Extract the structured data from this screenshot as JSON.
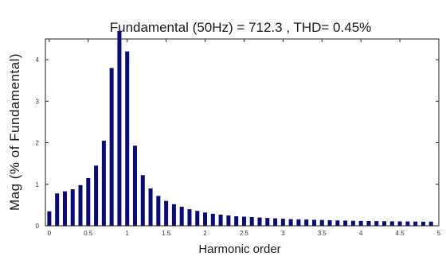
{
  "chart_data": {
    "type": "bar",
    "title": "Fundamental (50Hz) = 712.3 , THD= 0.45%",
    "xlabel": "Harmonic order",
    "ylabel": "Mag (% of Fundamental)",
    "xlim": [
      -0.05,
      5.0
    ],
    "ylim": [
      0,
      4.5
    ],
    "xticks": [
      0,
      0.5,
      1,
      1.5,
      2,
      2.5,
      3,
      3.5,
      4,
      4.5,
      5
    ],
    "xtick_labels": [
      "0",
      "0.5",
      "1",
      "1.5",
      "2",
      "2.5",
      "3",
      "3.5",
      "4",
      "4.5",
      "5"
    ],
    "yticks": [
      0,
      1,
      2,
      3,
      4
    ],
    "ytick_labels": [
      "0",
      "1",
      "2",
      "3",
      "4"
    ],
    "grid": false,
    "colors": {
      "bar": "#0a0a7a",
      "axis": "#222222"
    },
    "x": [
      0,
      0.1,
      0.2,
      0.3,
      0.4,
      0.5,
      0.6,
      0.7,
      0.8,
      0.9,
      1.0,
      1.1,
      1.2,
      1.3,
      1.4,
      1.5,
      1.6,
      1.7,
      1.8,
      1.9,
      2.0,
      2.1,
      2.2,
      2.3,
      2.4,
      2.5,
      2.6,
      2.7,
      2.8,
      2.9,
      3.0,
      3.1,
      3.2,
      3.3,
      3.4,
      3.5,
      3.6,
      3.7,
      3.8,
      3.9,
      4.0,
      4.1,
      4.2,
      4.3,
      4.4,
      4.5,
      4.6,
      4.7,
      4.8,
      4.9
    ],
    "values": [
      0.35,
      0.78,
      0.83,
      0.88,
      0.98,
      1.15,
      1.45,
      2.05,
      3.8,
      5.0,
      4.2,
      1.93,
      1.22,
      0.9,
      0.72,
      0.6,
      0.52,
      0.46,
      0.4,
      0.36,
      0.32,
      0.29,
      0.27,
      0.25,
      0.23,
      0.22,
      0.21,
      0.2,
      0.19,
      0.18,
      0.17,
      0.16,
      0.155,
      0.15,
      0.145,
      0.14,
      0.135,
      0.13,
      0.125,
      0.12,
      0.118,
      0.115,
      0.112,
      0.11,
      0.108,
      0.106,
      0.104,
      0.102,
      0.1,
      0.1
    ]
  }
}
